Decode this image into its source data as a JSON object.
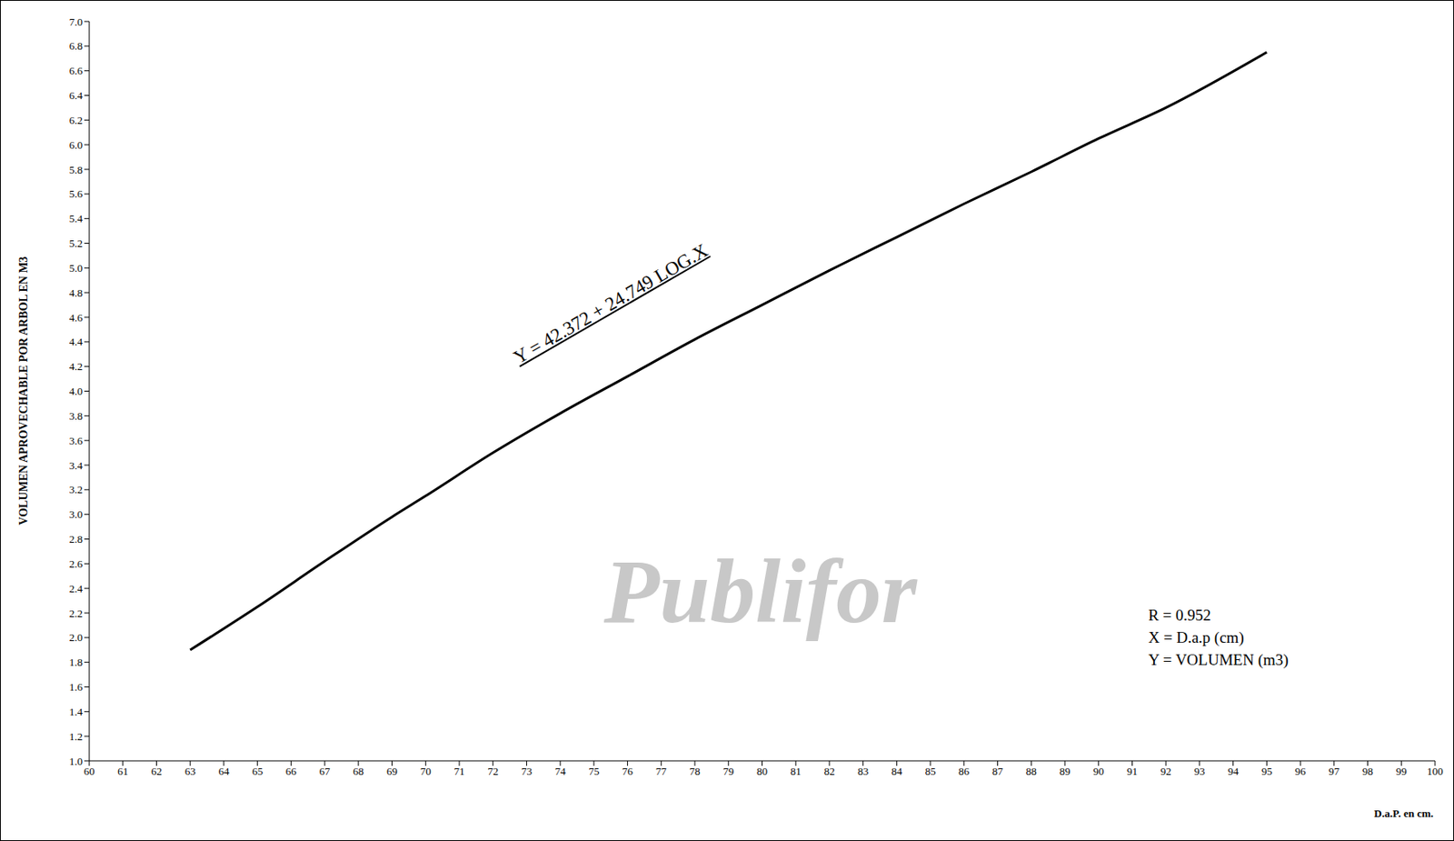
{
  "chart_data": {
    "type": "line",
    "x_label": "D.a.P. en cm.",
    "y_label": "VOLUMEN APROVECHABLE POR ARBOL EN M3",
    "annotations": [
      "Y = 42.372 + 24.749 LOG.X",
      "R = 0.952",
      "X = D.a.p (cm)",
      "Y = VOLUMEN (m3)",
      "Publifor"
    ],
    "x": [
      63,
      65,
      67,
      69,
      70,
      72,
      74,
      76,
      78,
      80,
      82,
      84,
      86,
      88,
      90,
      92,
      95
    ],
    "values": [
      1.9,
      2.25,
      2.62,
      2.98,
      3.15,
      3.5,
      3.82,
      4.12,
      4.42,
      4.7,
      4.98,
      5.25,
      5.52,
      5.78,
      6.05,
      6.3,
      6.75
    ],
    "color": "#000000",
    "marker": "none",
    "line_style": "solid",
    "grid": false,
    "xlim": [
      60,
      100
    ],
    "xticks": [
      60,
      61,
      62,
      63,
      64,
      65,
      66,
      67,
      68,
      69,
      70,
      71,
      72,
      73,
      74,
      75,
      76,
      77,
      78,
      79,
      80,
      81,
      82,
      83,
      84,
      85,
      86,
      87,
      88,
      89,
      90,
      91,
      92,
      93,
      94,
      95,
      96,
      97,
      98,
      99,
      100
    ],
    "ylim": [
      1,
      7
    ],
    "yticks": [
      {
        "value": 1,
        "label": "1.0"
      },
      1.2,
      1.4,
      1.6,
      1.8,
      {
        "value": 2,
        "label": "2.0"
      },
      2.2,
      2.4,
      2.6,
      2.8,
      {
        "value": 3,
        "label": "3.0"
      },
      3.2,
      3.4,
      3.6,
      3.8,
      {
        "value": 4,
        "label": "4.0"
      },
      4.2,
      4.4,
      4.6,
      4.8,
      {
        "value": 5,
        "label": "5.0"
      },
      5.2,
      5.4,
      5.6,
      5.8,
      {
        "value": 6,
        "label": "6.0"
      },
      6.2,
      6.4,
      6.6,
      6.8,
      {
        "value": 7,
        "label": "7.0"
      }
    ]
  }
}
